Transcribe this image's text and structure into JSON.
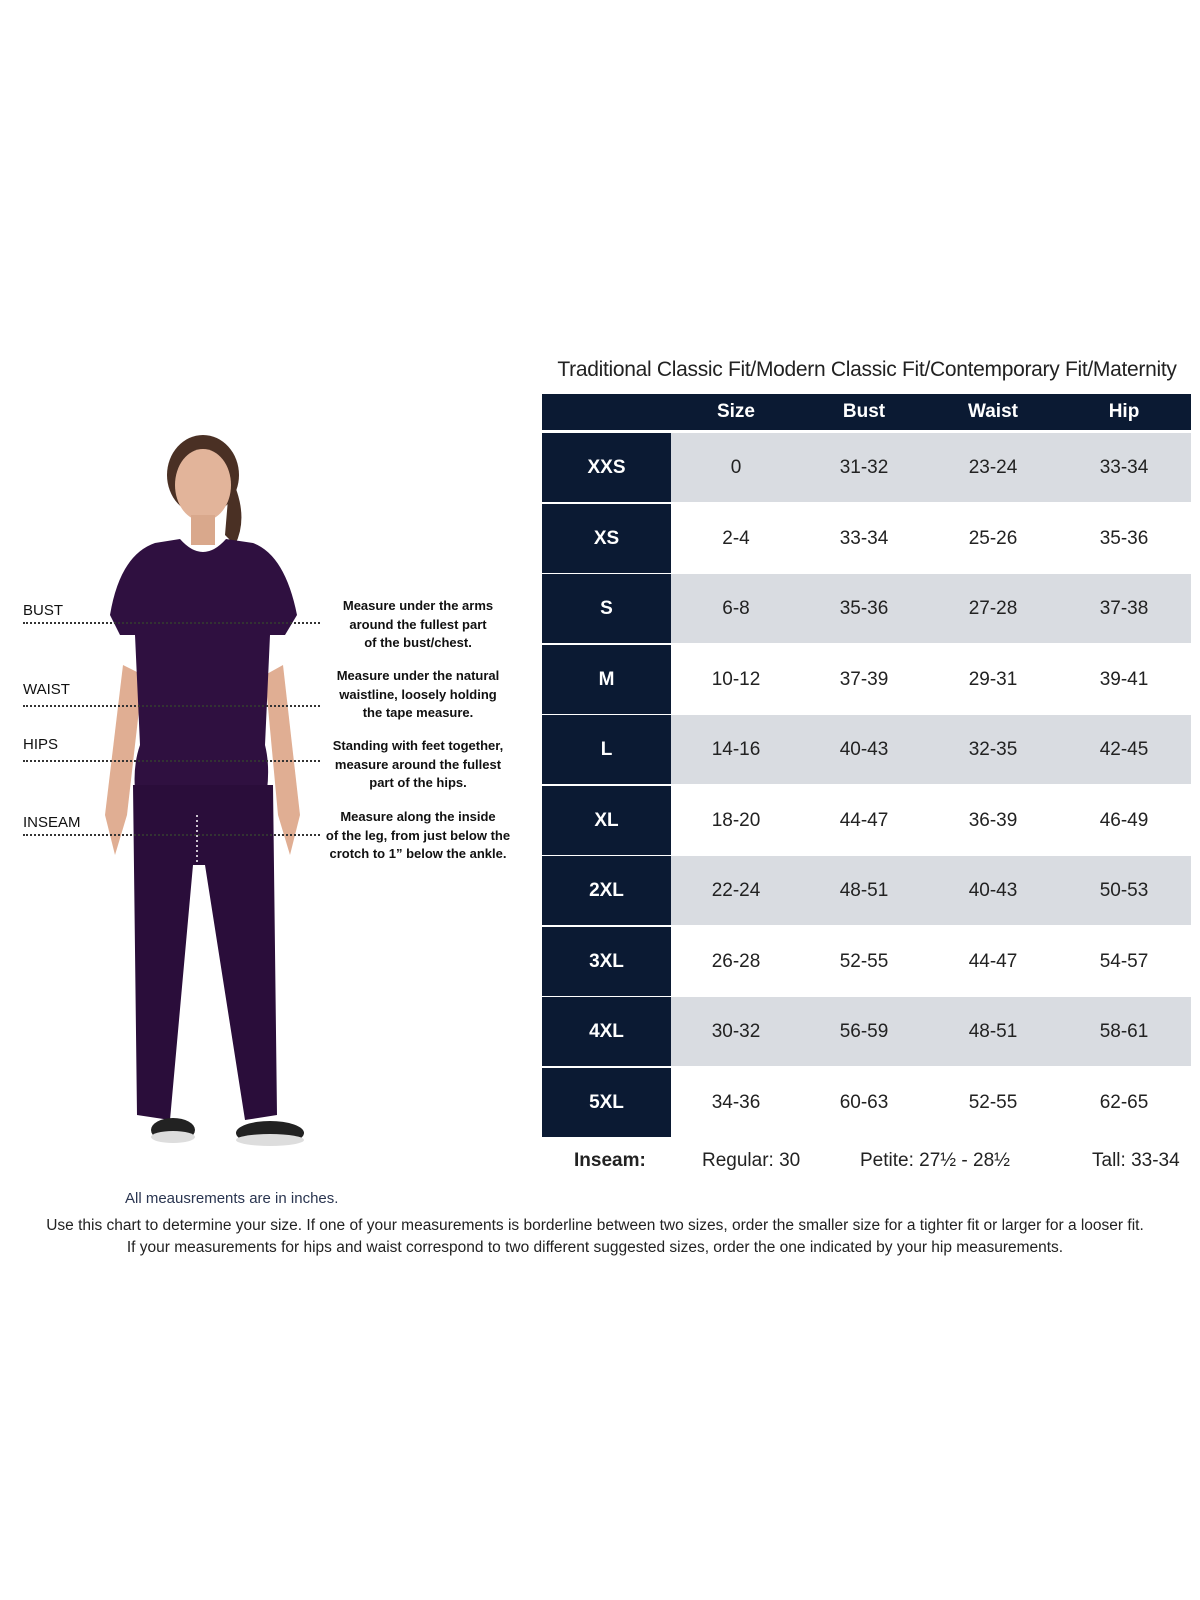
{
  "chart_data": {
    "type": "table",
    "title": "Traditional Classic Fit/Modern Classic Fit/Contemporary Fit/Maternity",
    "columns": [
      "",
      "Size",
      "Bust",
      "Waist",
      "Hip"
    ],
    "rows": [
      {
        "label": "XXS",
        "size": "0",
        "bust": "31-32",
        "waist": "23-24",
        "hip": "33-34"
      },
      {
        "label": "XS",
        "size": "2-4",
        "bust": "33-34",
        "waist": "25-26",
        "hip": "35-36"
      },
      {
        "label": "S",
        "size": "6-8",
        "bust": "35-36",
        "waist": "27-28",
        "hip": "37-38"
      },
      {
        "label": "M",
        "size": "10-12",
        "bust": "37-39",
        "waist": "29-31",
        "hip": "39-41"
      },
      {
        "label": "L",
        "size": "14-16",
        "bust": "40-43",
        "waist": "32-35",
        "hip": "42-45"
      },
      {
        "label": "XL",
        "size": "18-20",
        "bust": "44-47",
        "waist": "36-39",
        "hip": "46-49"
      },
      {
        "label": "2XL",
        "size": "22-24",
        "bust": "48-51",
        "waist": "40-43",
        "hip": "50-53"
      },
      {
        "label": "3XL",
        "size": "26-28",
        "bust": "52-55",
        "waist": "44-47",
        "hip": "54-57"
      },
      {
        "label": "4XL",
        "size": "30-32",
        "bust": "56-59",
        "waist": "48-51",
        "hip": "58-61"
      },
      {
        "label": "5XL",
        "size": "34-36",
        "bust": "60-63",
        "waist": "52-55",
        "hip": "62-65"
      }
    ],
    "inseam": {
      "label": "Inseam:",
      "regular": "Regular: 30",
      "petite": "Petite: 27½ - 28½",
      "tall": "Tall: 33-34"
    }
  },
  "measurements": [
    {
      "label": "BUST",
      "description": [
        "Measure under the arms",
        "around the fullest part",
        "of the bust/chest."
      ]
    },
    {
      "label": "WAIST",
      "description": [
        "Measure under the natural",
        "waistline, loosely holding",
        "the tape measure."
      ]
    },
    {
      "label": "HIPS",
      "description": [
        "Standing with feet together,",
        "measure around the fullest",
        "part of the hips."
      ]
    },
    {
      "label": "INSEAM",
      "description": [
        "Measure along the inside",
        "of the leg, from just below the",
        "crotch to 1” below the ankle."
      ]
    }
  ],
  "units_note": "All meausrements are in inches.",
  "footer": [
    "Use this chart to determine your size. If one of your measurements is borderline between two sizes, order the smaller size for a tighter fit or larger for a looser fit.",
    "If your measurements for hips and waist correspond to two different suggested sizes, order the one indicated by your hip measurements."
  ],
  "colors": {
    "navy": "#0b1a33",
    "row_gray": "#d9dce1",
    "scrubs_purple": "#2f1040"
  }
}
